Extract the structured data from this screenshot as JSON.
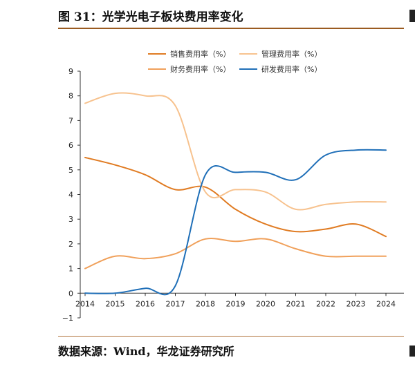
{
  "header": {
    "figure_title": "图 31：光学光电子板块费用率变化"
  },
  "footer": {
    "source": "数据来源：Wind，华龙证券研究所"
  },
  "chart_data": {
    "type": "line",
    "title": "",
    "xlabel": "",
    "ylabel": "",
    "x": [
      "2014",
      "2015",
      "2016",
      "2017",
      "2018",
      "2019",
      "2020",
      "2021",
      "2022",
      "2023",
      "2024"
    ],
    "yticks": [
      "9",
      "8",
      "7",
      "6",
      "5",
      "4",
      "3",
      "2",
      "1",
      "0",
      "−1"
    ],
    "ylim": [
      -1,
      9
    ],
    "grid": false,
    "legend_position": "top",
    "series": [
      {
        "name": "销售费用率（%）",
        "color": "#E07B22",
        "values": [
          5.5,
          5.2,
          4.8,
          4.2,
          4.3,
          3.4,
          2.8,
          2.5,
          2.6,
          2.8,
          2.3
        ]
      },
      {
        "name": "管理费用率（%）",
        "color": "#F7C28E",
        "values": [
          7.7,
          8.1,
          8.0,
          7.6,
          4.1,
          4.2,
          4.1,
          3.4,
          3.6,
          3.7,
          3.7
        ]
      },
      {
        "name": "财务费用率（%）",
        "color": "#F0A05A",
        "values": [
          1.0,
          1.5,
          1.4,
          1.6,
          2.2,
          2.1,
          2.2,
          1.8,
          1.5,
          1.5,
          1.5
        ]
      },
      {
        "name": "研发费用率（%）",
        "color": "#1F6FB8",
        "values": [
          0.0,
          0.0,
          0.2,
          0.3,
          4.8,
          4.9,
          4.9,
          4.6,
          5.6,
          5.8,
          5.8
        ]
      }
    ]
  }
}
